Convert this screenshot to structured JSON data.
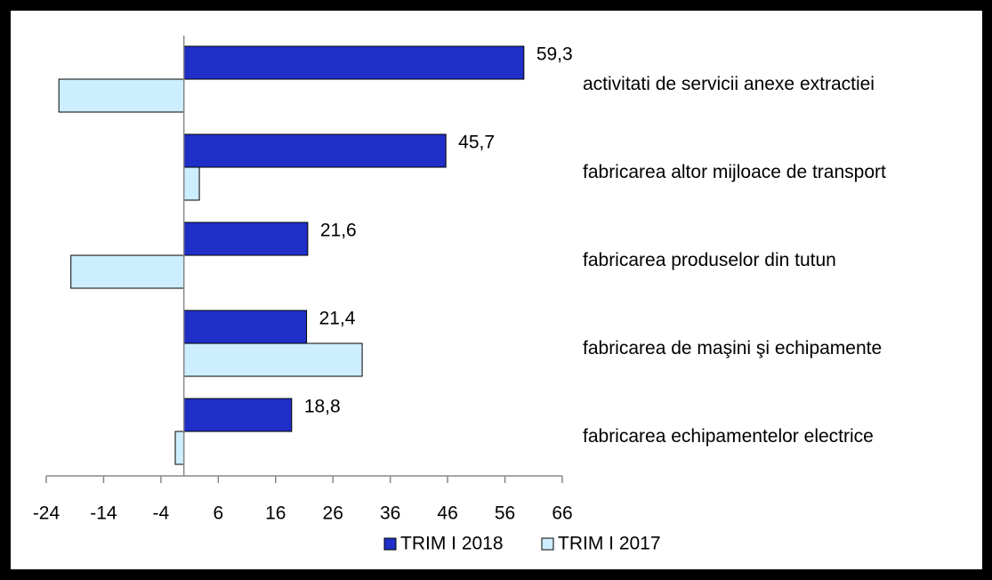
{
  "chart_data": {
    "type": "barh",
    "categories": [
      "activitati de servicii anexe extractiei",
      "fabricarea altor mijloace de transport",
      "fabricarea produselor din tutun",
      "fabricarea de maşini şi echipamente",
      "fabricarea echipamentelor electrice"
    ],
    "series": [
      {
        "name": "TRIM I 2018",
        "color": "#1f2fc8",
        "values": [
          59.3,
          45.7,
          21.6,
          21.4,
          18.8
        ],
        "value_labels": [
          "59,3",
          "45,7",
          "21,6",
          "21,4",
          "18,8"
        ]
      },
      {
        "name": "TRIM I 2017",
        "color": "#cdeeff",
        "values": [
          -21.8,
          2.7,
          -19.7,
          31.1,
          -1.5
        ]
      }
    ],
    "xlim": [
      -24,
      66
    ],
    "xticks": [
      -24,
      -14,
      -4,
      6,
      16,
      26,
      36,
      46,
      56,
      66
    ],
    "legend": "bottom"
  }
}
